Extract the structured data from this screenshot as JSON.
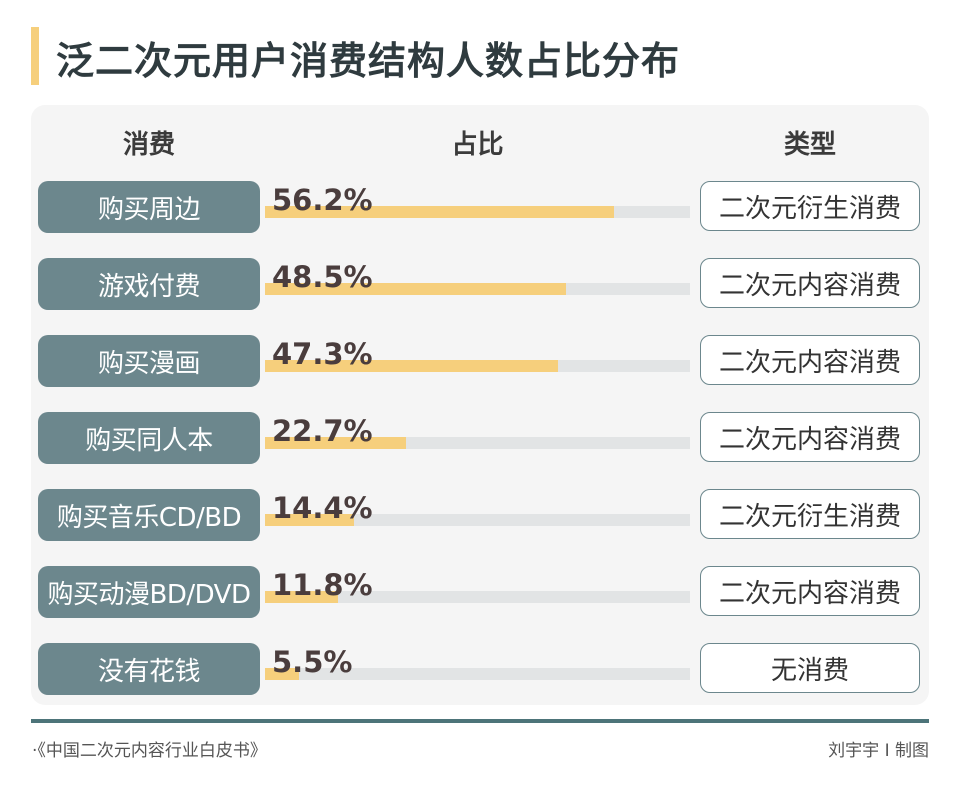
{
  "title": "泛二次元用户消费结构人数占比分布",
  "headers": {
    "c1": "消费",
    "c2": "占比",
    "c3": "类型"
  },
  "chart_data": {
    "type": "bar",
    "title": "泛二次元用户消费结构人数占比分布",
    "categories": [
      "购买周边",
      "游戏付费",
      "购买漫画",
      "购买同人本",
      "购买音乐CD/BD",
      "购买动漫BD/DVD",
      "没有花钱"
    ],
    "values": [
      56.2,
      48.5,
      47.3,
      22.7,
      14.4,
      11.8,
      5.5
    ],
    "labels": [
      "56.2%",
      "48.5%",
      "47.3%",
      "22.7%",
      "14.4%",
      "11.8%",
      "5.5%"
    ],
    "types": [
      "二次元衍生消费",
      "二次元内容消费",
      "二次元内容消费",
      "二次元内容消费",
      "二次元衍生消费",
      "二次元内容消费",
      "无消费"
    ],
    "xlim": [
      0,
      68.5
    ],
    "unit": "%"
  },
  "colors": {
    "bar": "#f6cf7c",
    "label_bg": "#6c878d",
    "track": "#e2e4e5"
  },
  "footer": {
    "source": "·《中国二次元内容行业白皮书》",
    "credit": "刘宇宇 I 制图"
  }
}
